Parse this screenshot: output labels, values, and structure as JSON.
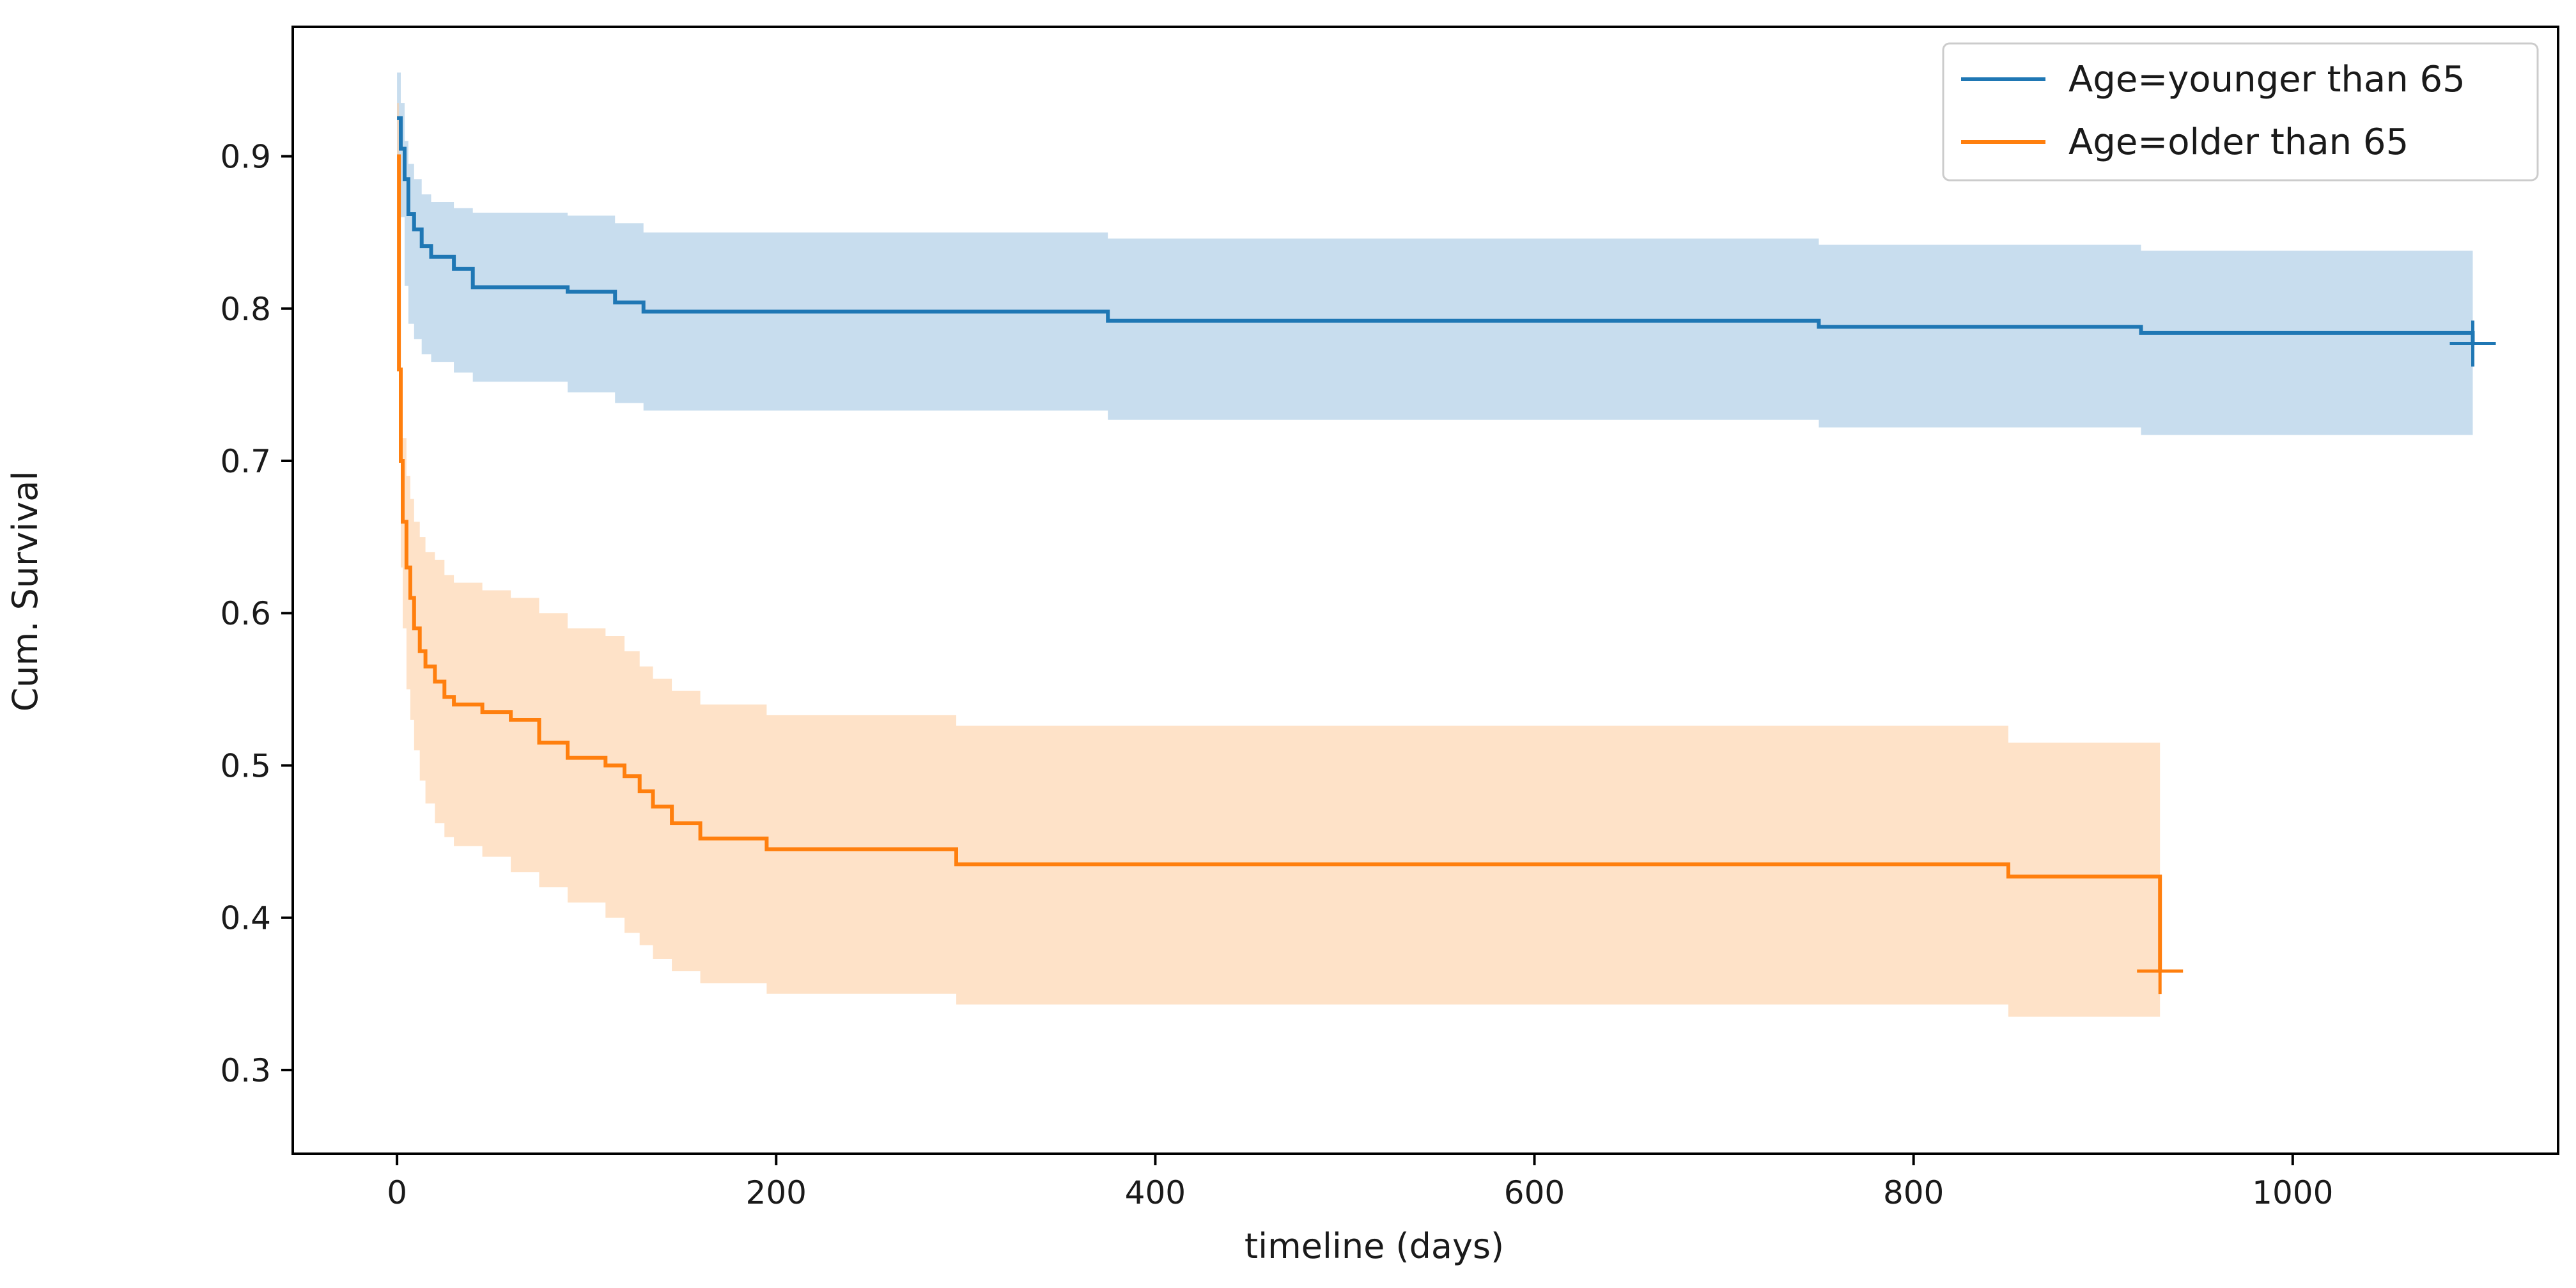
{
  "chart_data": {
    "type": "line",
    "title": "",
    "xlabel": "timeline (days)",
    "ylabel": "Cum. Survival",
    "xlim": [
      -55,
      1140
    ],
    "ylim": [
      0.245,
      0.985
    ],
    "xticks": [
      0,
      200,
      400,
      600,
      800,
      1000
    ],
    "yticks": [
      0.3,
      0.4,
      0.5,
      0.6,
      0.7,
      0.8,
      0.9
    ],
    "grid": false,
    "legend_position": "top-right",
    "series": [
      {
        "name": "Age=younger than 65",
        "color": "#1f77b4",
        "band_color": "#a6c8e4",
        "x": [
          0,
          2,
          4,
          6,
          9,
          13,
          18,
          30,
          40,
          90,
          115,
          130,
          375,
          750,
          920,
          1095
        ],
        "y": [
          0.925,
          0.905,
          0.885,
          0.862,
          0.852,
          0.841,
          0.834,
          0.826,
          0.814,
          0.811,
          0.804,
          0.798,
          0.792,
          0.788,
          0.784,
          0.777
        ],
        "lower": [
          0.89,
          0.86,
          0.815,
          0.79,
          0.78,
          0.77,
          0.765,
          0.758,
          0.752,
          0.745,
          0.738,
          0.733,
          0.727,
          0.722,
          0.717,
          0.71
        ],
        "upper": [
          0.955,
          0.935,
          0.91,
          0.895,
          0.885,
          0.875,
          0.87,
          0.866,
          0.863,
          0.861,
          0.856,
          0.85,
          0.846,
          0.842,
          0.838,
          0.835
        ],
        "censor": [
          {
            "x": 1095,
            "y": 0.777
          }
        ]
      },
      {
        "name": "Age=older than 65",
        "color": "#ff7f0e",
        "band_color": "#fdd0a6",
        "x": [
          0,
          1,
          2,
          3,
          5,
          7,
          9,
          12,
          15,
          20,
          25,
          30,
          45,
          60,
          75,
          90,
          110,
          120,
          128,
          135,
          145,
          160,
          195,
          295,
          850,
          930
        ],
        "y": [
          0.9,
          0.76,
          0.7,
          0.66,
          0.63,
          0.61,
          0.59,
          0.575,
          0.565,
          0.555,
          0.545,
          0.54,
          0.535,
          0.53,
          0.515,
          0.505,
          0.5,
          0.493,
          0.483,
          0.473,
          0.462,
          0.452,
          0.445,
          0.435,
          0.427,
          0.365
        ],
        "lower": [
          0.85,
          0.7,
          0.63,
          0.59,
          0.55,
          0.53,
          0.51,
          0.49,
          0.475,
          0.462,
          0.453,
          0.447,
          0.44,
          0.43,
          0.42,
          0.41,
          0.4,
          0.39,
          0.382,
          0.373,
          0.365,
          0.357,
          0.35,
          0.343,
          0.335,
          0.28
        ],
        "upper": [
          0.935,
          0.8,
          0.75,
          0.715,
          0.69,
          0.675,
          0.66,
          0.65,
          0.64,
          0.635,
          0.625,
          0.62,
          0.615,
          0.61,
          0.6,
          0.59,
          0.585,
          0.575,
          0.565,
          0.557,
          0.549,
          0.54,
          0.533,
          0.526,
          0.515,
          0.515
        ],
        "censor": [
          {
            "x": 930,
            "y": 0.365
          }
        ]
      }
    ]
  }
}
